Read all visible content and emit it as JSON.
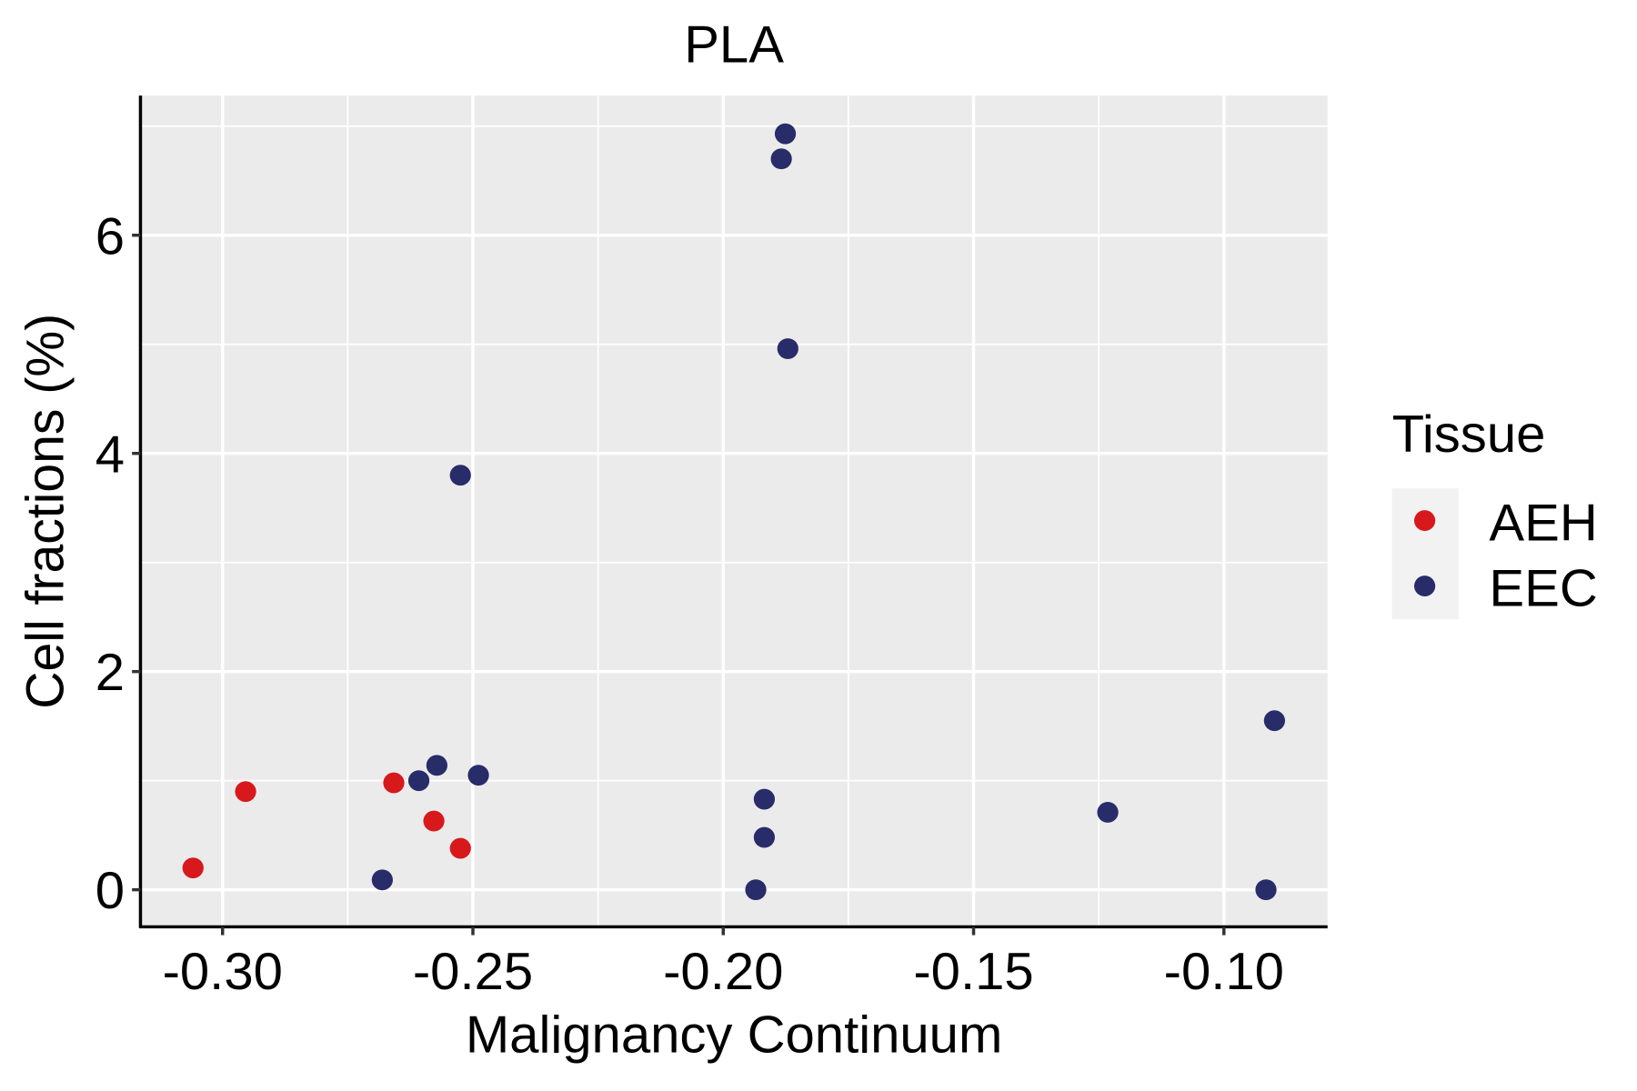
{
  "chart_data": {
    "type": "scatter",
    "title": "PLA",
    "xlabel": "Malignancy Continuum",
    "ylabel": "Cell fractions (%)",
    "xlim": [
      -0.3164,
      -0.0793
    ],
    "ylim": [
      -0.34,
      7.28
    ],
    "xticks": [
      -0.3,
      -0.25,
      -0.2,
      -0.15,
      -0.1
    ],
    "xtick_labels": [
      "-0.30",
      "-0.25",
      "-0.20",
      "-0.15",
      "-0.10"
    ],
    "yticks": [
      0,
      2,
      4,
      6
    ],
    "ytick_labels": [
      "0",
      "2",
      "4",
      "6"
    ],
    "grid": true,
    "legend": {
      "title": "Tissue",
      "placement": "right",
      "entries": [
        "AEH",
        "EEC"
      ]
    },
    "colors": {
      "AEH": "#D7191C",
      "EEC": "#282C69"
    },
    "series": [
      {
        "name": "AEH",
        "points": [
          [
            -0.3059,
            0.2
          ],
          [
            -0.2954,
            0.9
          ],
          [
            -0.2658,
            0.98
          ],
          [
            -0.2578,
            0.63
          ],
          [
            -0.2525,
            0.38
          ]
        ]
      },
      {
        "name": "EEC",
        "points": [
          [
            -0.1876,
            6.93
          ],
          [
            -0.1884,
            6.7
          ],
          [
            -0.1871,
            4.96
          ],
          [
            -0.2525,
            3.8
          ],
          [
            -0.2572,
            1.14
          ],
          [
            -0.2608,
            1.0
          ],
          [
            -0.2489,
            1.05
          ],
          [
            -0.2681,
            0.09
          ],
          [
            -0.1918,
            0.83
          ],
          [
            -0.1918,
            0.48
          ],
          [
            -0.1935,
            0.0
          ],
          [
            -0.0899,
            1.55
          ],
          [
            -0.1232,
            0.71
          ],
          [
            -0.0916,
            0.0
          ]
        ]
      }
    ]
  }
}
